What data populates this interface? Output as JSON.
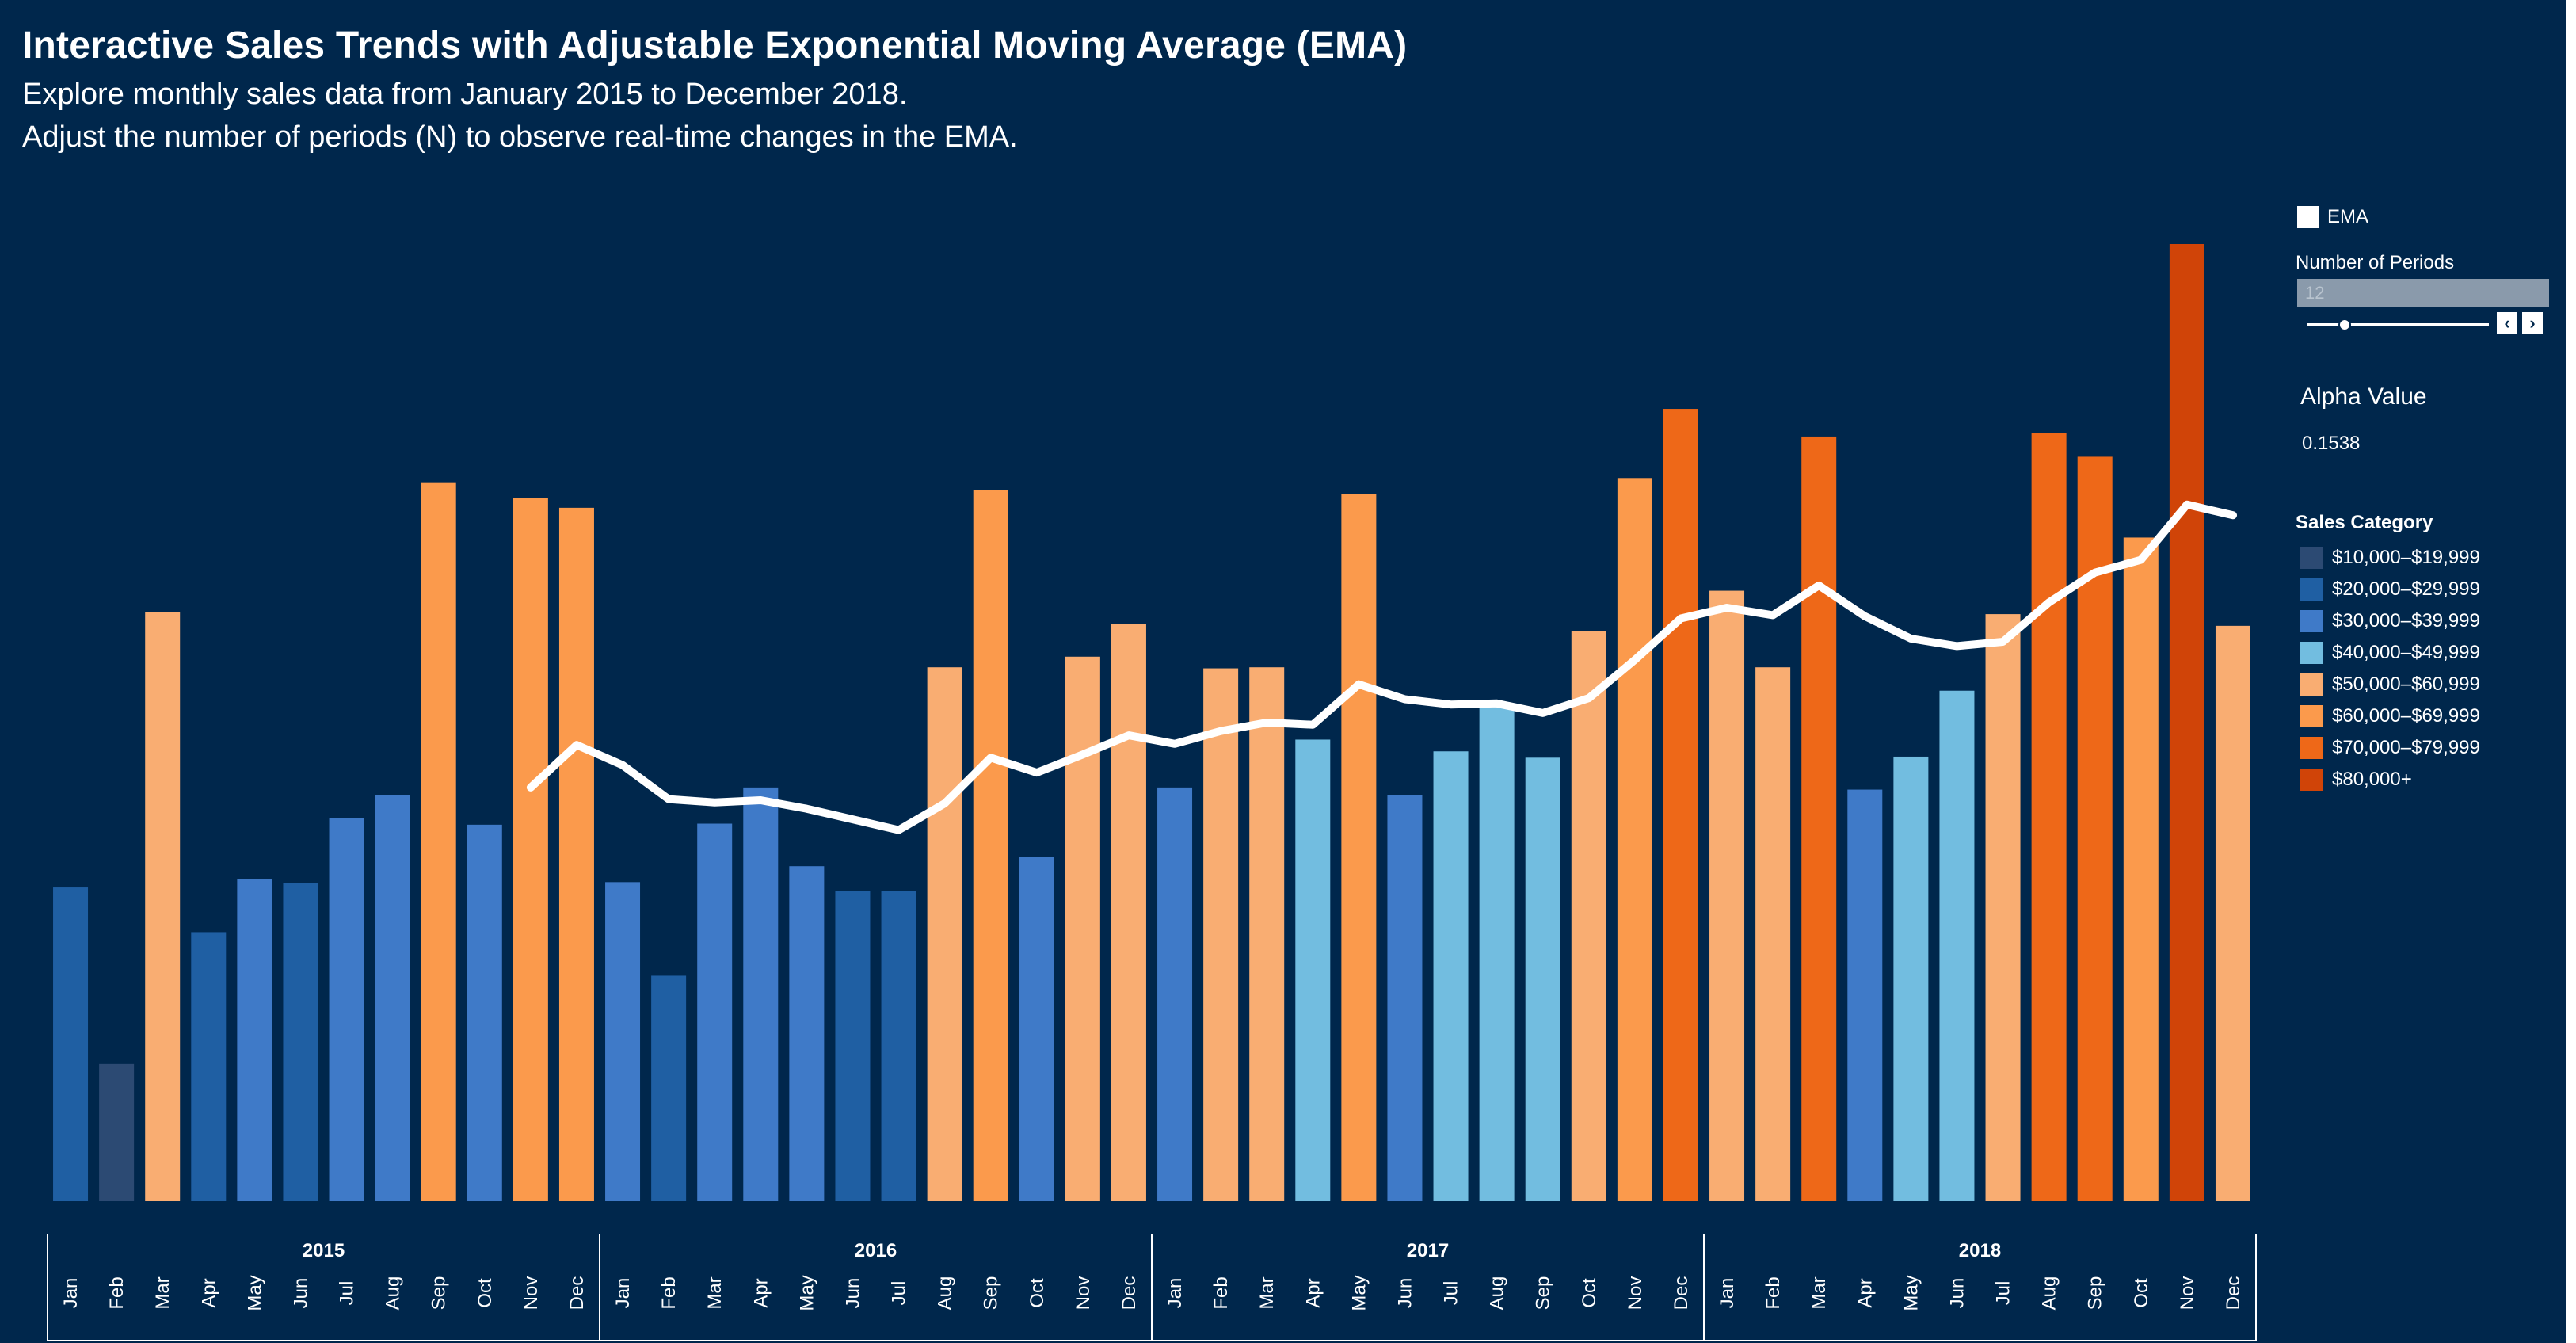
{
  "title": "Interactive Sales Trends with Adjustable Exponential Moving Average (EMA)",
  "subtitle_line1": "Explore monthly sales data from January 2015 to December 2018.",
  "subtitle_line2": "Adjust the number of periods (N) to observe real-time changes in the EMA.",
  "controls": {
    "ema_legend_label": "EMA",
    "periods_label": "Number of Periods",
    "periods_value": "12",
    "periods_min": 1,
    "periods_max": 60,
    "decrement_icon": "‹",
    "increment_icon": "›",
    "alpha_label": "Alpha Value",
    "alpha_value": "0.1538"
  },
  "legend": {
    "title": "Sales Category",
    "items": [
      {
        "label": "$10,000–$19,999",
        "color": "#2c4a73"
      },
      {
        "label": "$20,000–$29,999",
        "color": "#1f5fa3"
      },
      {
        "label": "$30,000–$39,999",
        "color": "#3f7ac8"
      },
      {
        "label": "$40,000–$49,999",
        "color": "#72bde0"
      },
      {
        "label": "$50,000–$60,999",
        "color": "#f9ad72"
      },
      {
        "label": "$60,000–$69,999",
        "color": "#fb9a4c"
      },
      {
        "label": "$70,000–$79,999",
        "color": "#ee6818"
      },
      {
        "label": "$80,000+",
        "color": "#d04408"
      }
    ]
  },
  "chart_data": {
    "type": "bar",
    "title": "Interactive Sales Trends with Adjustable Exponential Moving Average (EMA)",
    "ylim": [
      0,
      90000
    ],
    "years": [
      "2015",
      "2016",
      "2017",
      "2018"
    ],
    "months": [
      "Jan",
      "Feb",
      "Mar",
      "Apr",
      "May",
      "Jun",
      "Jul",
      "Aug",
      "Sep",
      "Oct",
      "Nov",
      "Dec"
    ],
    "series": [
      {
        "name": "Sales",
        "values": [
          29500,
          12900,
          55400,
          25300,
          30300,
          29900,
          36000,
          38200,
          67600,
          35400,
          66100,
          65200,
          30000,
          21200,
          35500,
          38900,
          31500,
          29200,
          29200,
          50200,
          66900,
          32400,
          51200,
          54300,
          38900,
          50100,
          50200,
          43400,
          66500,
          38200,
          42300,
          46800,
          41700,
          53600,
          68000,
          74500,
          57400,
          50200,
          71900,
          38700,
          41800,
          48000,
          55200,
          72200,
          70000,
          62400,
          90000,
          54100
        ]
      },
      {
        "name": "EMA",
        "values": [
          null,
          null,
          null,
          null,
          null,
          null,
          null,
          null,
          null,
          null,
          38900,
          42900,
          41000,
          37800,
          37500,
          37700,
          36900,
          35900,
          34900,
          37400,
          41700,
          40300,
          42000,
          43800,
          43000,
          44200,
          45000,
          44800,
          48600,
          47200,
          46700,
          46800,
          45900,
          47300,
          50900,
          54800,
          55800,
          55100,
          57900,
          55000,
          52900,
          52200,
          52600,
          56300,
          59100,
          60300,
          65500,
          64500
        ]
      }
    ],
    "categories_thresholds": [
      10000,
      20000,
      30000,
      40000,
      50000,
      61000,
      70000,
      80000
    ]
  }
}
